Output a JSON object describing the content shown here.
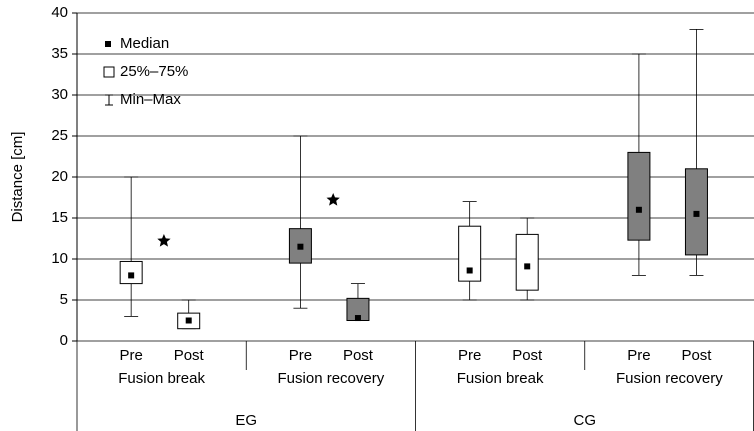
{
  "chart_data": {
    "type": "box",
    "y_label": "Distance [cm]",
    "ylim": [
      0,
      40
    ],
    "yticks": [
      0,
      5,
      10,
      15,
      20,
      25,
      30,
      35,
      40
    ],
    "grid": true,
    "legend": [
      "Median",
      "25%–75%",
      "Min–Max"
    ],
    "groups": [
      "EG",
      "CG"
    ],
    "subgroups": [
      "Fusion break",
      "Fusion recovery",
      "Fusion break",
      "Fusion recovery"
    ],
    "categories": [
      "Pre",
      "Post",
      "Pre",
      "Post",
      "Pre",
      "Post",
      "Pre",
      "Post"
    ],
    "boxes": [
      {
        "min": 3,
        "q1": 7,
        "median": 8,
        "q3": 9.7,
        "max": 20,
        "color": "#ffffff"
      },
      {
        "min": 1.5,
        "q1": 1.5,
        "median": 2.5,
        "q3": 3.4,
        "max": 5,
        "color": "#ffffff"
      },
      {
        "min": 4,
        "q1": 9.5,
        "median": 11.5,
        "q3": 13.7,
        "max": 25,
        "color": "#808080"
      },
      {
        "min": 2.5,
        "q1": 2.5,
        "median": 2.8,
        "q3": 5.2,
        "max": 7,
        "color": "#808080"
      },
      {
        "min": 5,
        "q1": 7.3,
        "median": 8.6,
        "q3": 14,
        "max": 17,
        "color": "#ffffff"
      },
      {
        "min": 5,
        "q1": 6.2,
        "median": 9.1,
        "q3": 13,
        "max": 15,
        "color": "#ffffff"
      },
      {
        "min": 8,
        "q1": 12.3,
        "median": 16,
        "q3": 23,
        "max": 35,
        "color": "#808080"
      },
      {
        "min": 8,
        "q1": 10.5,
        "median": 15.5,
        "q3": 21,
        "max": 38,
        "color": "#808080"
      }
    ],
    "stars": [
      12.2,
      17.2,
      null,
      null
    ]
  }
}
